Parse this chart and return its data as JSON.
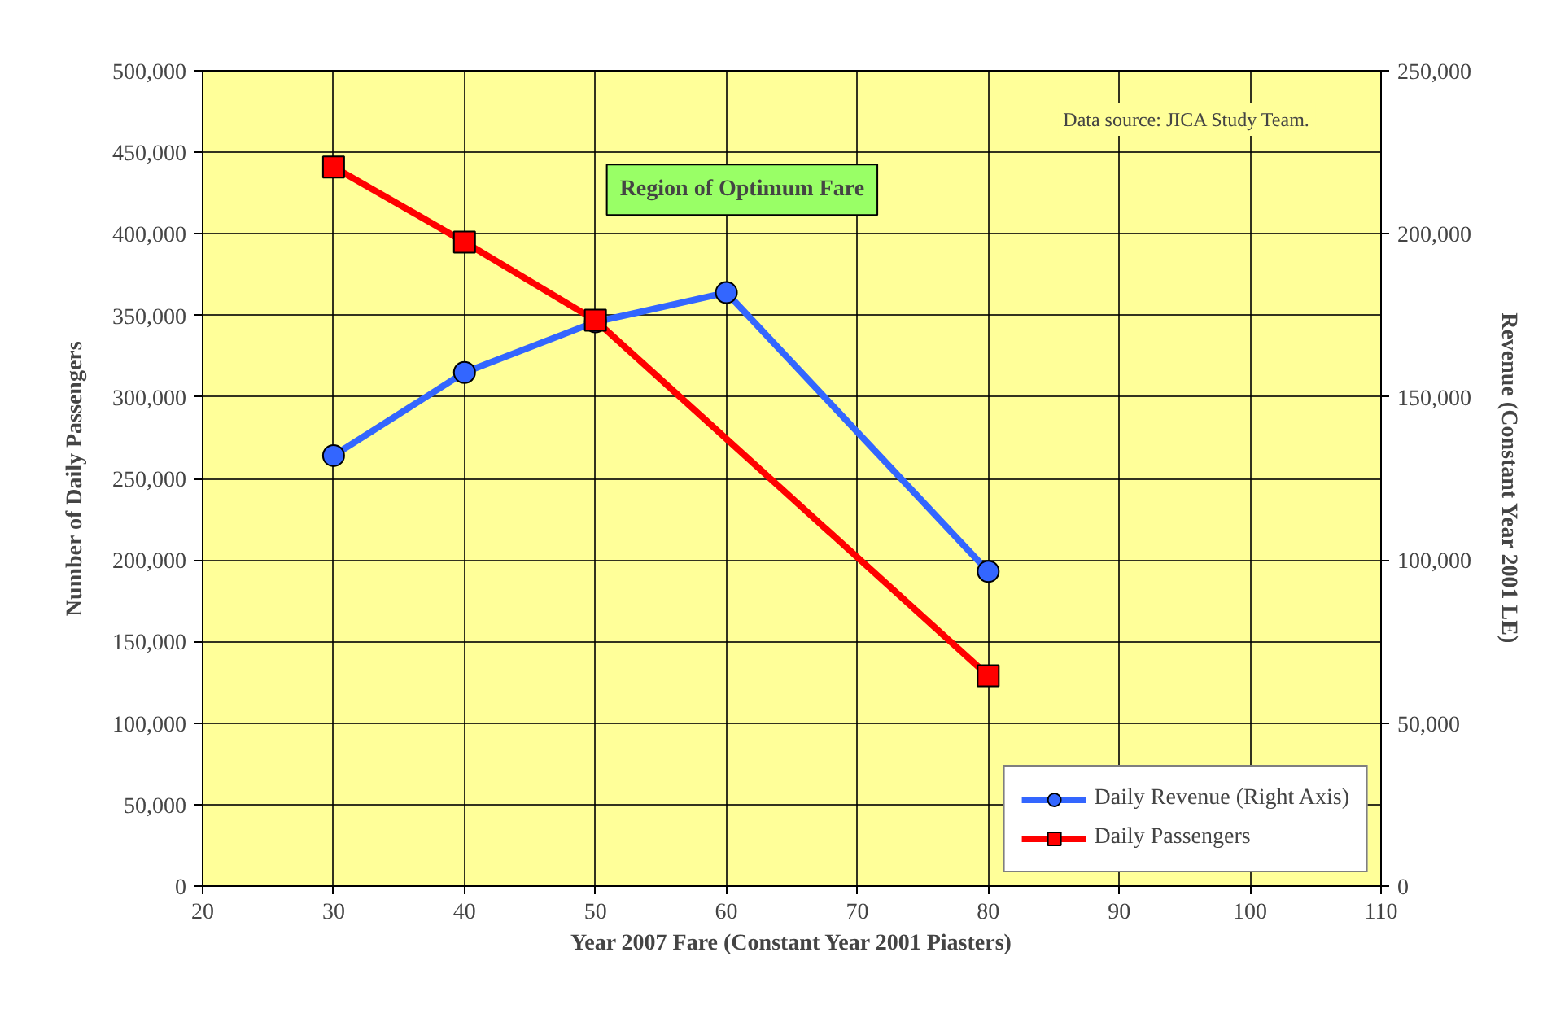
{
  "chart_data": {
    "type": "line",
    "xlabel": "Year 2007 Fare (Constant Year 2001 Piasters)",
    "ylabel": "Number of Daily Passengers",
    "y2label": "Revenue (Constant Year 2001 LE)",
    "x": [
      30,
      40,
      50,
      60,
      80
    ],
    "series": [
      {
        "name": "Daily Revenue (Right Axis)",
        "color": "#3366ff",
        "axis": "y2",
        "marker": "circle",
        "values": [
          132000,
          157500,
          173000,
          182000,
          96500
        ]
      },
      {
        "name": "Daily Passengers",
        "color": "#ff0000",
        "marker": "square",
        "x": [
          30,
          40,
          50,
          80
        ],
        "values": [
          441000,
          395000,
          347000,
          129000
        ]
      }
    ],
    "xlim": [
      20,
      110
    ],
    "xticks": [
      20,
      30,
      40,
      50,
      60,
      70,
      80,
      90,
      100,
      110
    ],
    "ylim": [
      0,
      500000
    ],
    "yticks": [
      {
        "value": 0,
        "label": "0"
      },
      {
        "value": 50000,
        "label": "50,000"
      },
      {
        "value": 100000,
        "label": "100,000"
      },
      {
        "value": 150000,
        "label": "150,000"
      },
      {
        "value": 200000,
        "label": "200,000"
      },
      {
        "value": 250000,
        "label": "250,000"
      },
      {
        "value": 300000,
        "label": "300,000"
      },
      {
        "value": 350000,
        "label": "350,000"
      },
      {
        "value": 400000,
        "label": "400,000"
      },
      {
        "value": 450000,
        "label": "450,000"
      },
      {
        "value": 500000,
        "label": "500,000"
      }
    ],
    "y2lim": [
      0,
      250000
    ],
    "y2ticks": [
      {
        "value": 0,
        "label": "0"
      },
      {
        "value": 50000,
        "label": "50,000"
      },
      {
        "value": 100000,
        "label": "100,000"
      },
      {
        "value": 150000,
        "label": "150,000"
      },
      {
        "value": 200000,
        "label": "200,000"
      },
      {
        "value": 250000,
        "label": "250,000"
      }
    ],
    "annotations": [
      "Region of Optimum Fare",
      "Data source: JICA Study Team."
    ],
    "grid": true,
    "legend": "bottom right",
    "line_style": "solid"
  }
}
